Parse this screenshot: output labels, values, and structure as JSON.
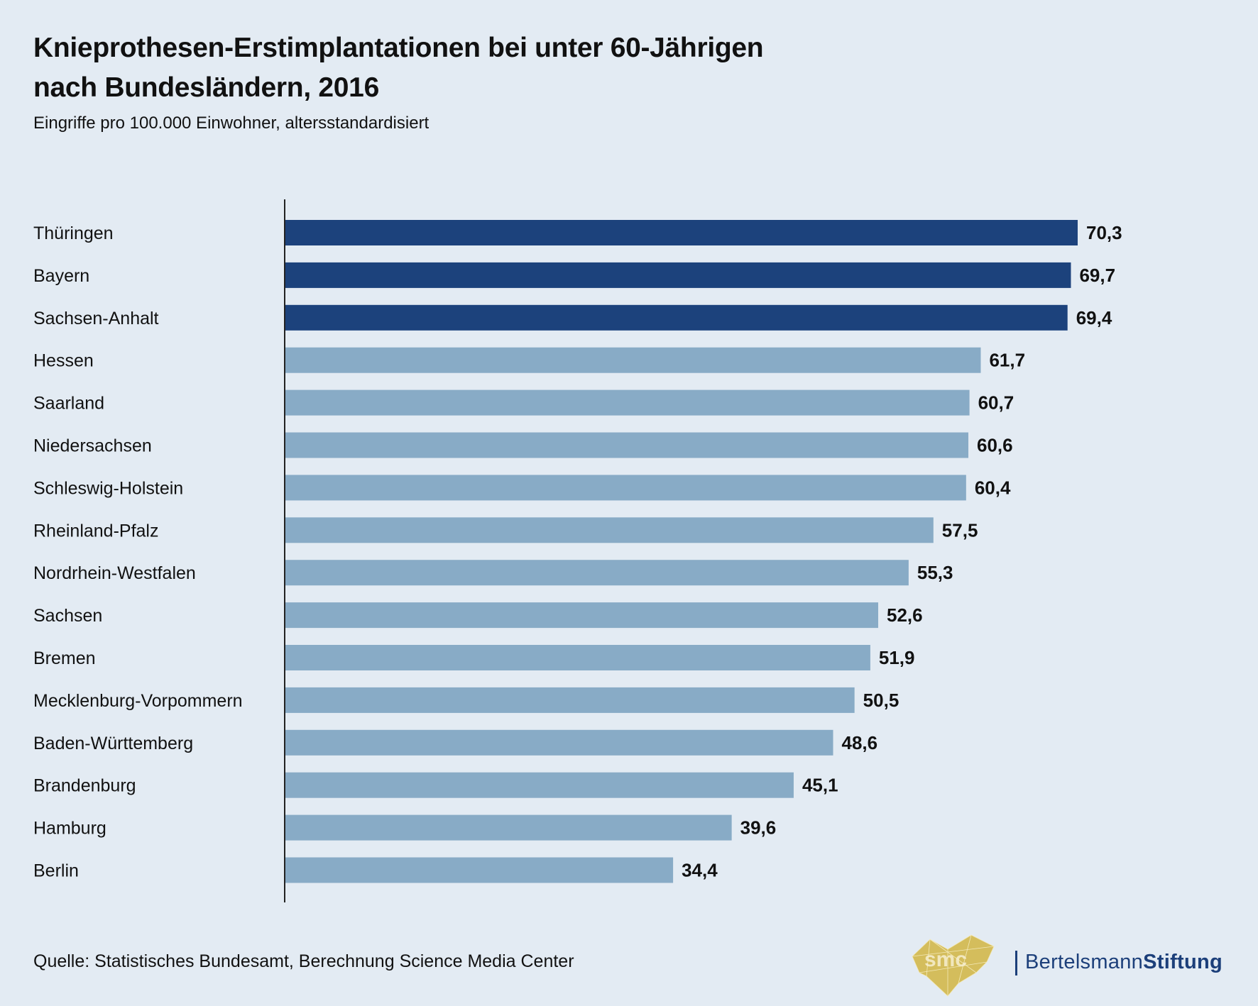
{
  "header": {
    "title_line1": "Knieprothesen-Erstimplantationen bei unter 60-Jährigen",
    "title_line2": "nach Bundesländern, 2016",
    "subtitle": "Eingriffe pro 100.000 Einwohner, altersstandardisiert"
  },
  "footer": {
    "source": "Quelle: Statistisches Bundesamt, Berechnung Science Media Center",
    "logo_smc": "smc",
    "brand_regular": "Bertelsmann",
    "brand_bold": "Stiftung"
  },
  "colors": {
    "highlight": "#1c427c",
    "default": "#88abc6",
    "background": "#e3ebf3",
    "brand": "#1c3f7a",
    "smc_gold": "#d4bd5c"
  },
  "chart_data": {
    "type": "bar",
    "orientation": "horizontal",
    "title": "Knieprothesen-Erstimplantationen bei unter 60-Jährigen nach Bundesländern, 2016",
    "subtitle": "Eingriffe pro 100.000 Einwohner, altersstandardisiert",
    "xlabel": "",
    "ylabel": "",
    "xlim": [
      0,
      70.3
    ],
    "grid": false,
    "categories": [
      "Thüringen",
      "Bayern",
      "Sachsen-Anhalt",
      "Hessen",
      "Saarland",
      "Niedersachsen",
      "Schleswig-Holstein",
      "Rheinland-Pfalz",
      "Nordrhein-Westfalen",
      "Sachsen",
      "Bremen",
      "Mecklenburg-Vorpommern",
      "Baden-Württemberg",
      "Brandenburg",
      "Hamburg",
      "Berlin"
    ],
    "values": [
      70.3,
      69.7,
      69.4,
      61.7,
      60.7,
      60.6,
      60.4,
      57.5,
      55.3,
      52.6,
      51.9,
      50.5,
      48.6,
      45.1,
      39.6,
      34.4
    ],
    "value_labels": [
      "70,3",
      "69,7",
      "69,4",
      "61,7",
      "60,7",
      "60,6",
      "60,4",
      "57,5",
      "55,3",
      "52,6",
      "51,9",
      "50,5",
      "48,6",
      "45,1",
      "39,6",
      "34,4"
    ],
    "highlighted": [
      true,
      true,
      true,
      false,
      false,
      false,
      false,
      false,
      false,
      false,
      false,
      false,
      false,
      false,
      false,
      false
    ],
    "source": "Quelle: Statistisches Bundesamt, Berechnung Science Media Center"
  }
}
